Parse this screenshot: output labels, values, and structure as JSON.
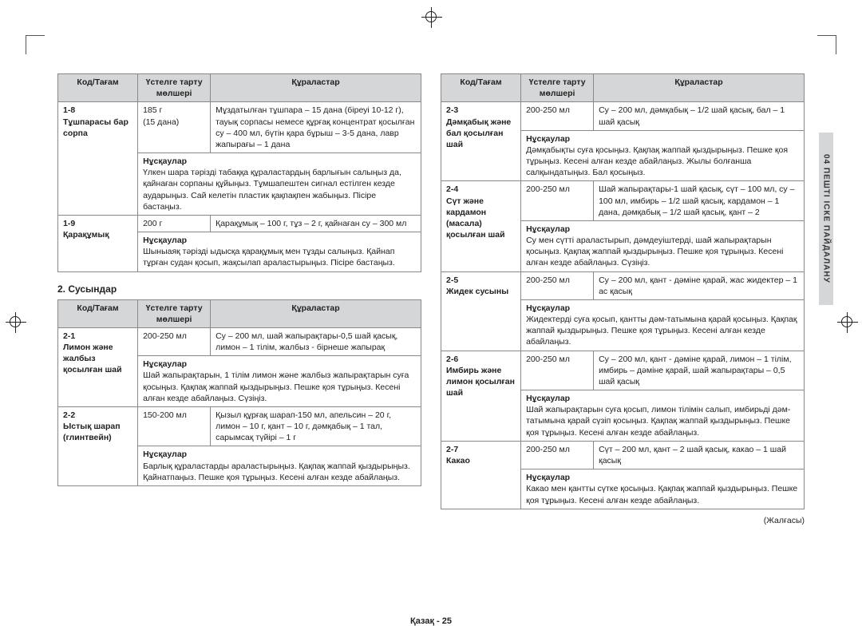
{
  "colors": {
    "header_bg": "#d5d6d8",
    "border": "#888888",
    "text": "#222222"
  },
  "headers": {
    "c1": "Код/Тағам",
    "c2": "Үстелге тарту мөлшері",
    "c3": "Құраластар"
  },
  "instr_label": "Нұсқаулар",
  "section2_title": "2. Сусындар",
  "continued": "(Жалғасы)",
  "page_num_label": "Қазақ - 25",
  "side_tab": "04  ПЕШТІ ІСКЕ ПАЙДАЛАНУ",
  "footer_l": "GE83KRQW-1_BWT_DE68-04283B-00_KK.indd   25",
  "footer_r": "2015-01-29   ⌘ 9:25:27",
  "left_t1": [
    {
      "code": "1-8\nТұшпарасы бар сорпа",
      "portion": "185 г\n(15 дана)",
      "ingr": "Мұздатылған тұшпара – 15 дана (біреуі 10-12 г), тауық сорпасы немесе құрғақ концентрат қосылған су – 400 мл, бүтін қара бұрыш – 3-5 дана, лавр жапырағы – 1 дана",
      "instr": "Үлкен шара тәрізді табаққа құраластардың барлығын салыңыз да, қайнаған сорпаны құйыңыз. Тұмшапештен сигнал естілген кезде аударыңыз. Сай келетін пластик қақпақпен жабыңыз. Пісіре бастаңыз."
    },
    {
      "code": "1-9\nҚарақұмық",
      "portion": "200 г",
      "ingr": "Қарақұмық – 100 г, тұз – 2 г, қайнаған су – 300 мл",
      "instr": "Шыныаяқ тәрізді ыдысқа қарақұмық мен тұзды салыңыз. Қайнап тұрған судан қосып, жақсылап араластырыңыз. Пісіре бастаңыз."
    }
  ],
  "left_t2": [
    {
      "code": "2-1\nЛимон және жалбыз қосылған шай",
      "portion": "200-250 мл",
      "ingr": "Су – 200 мл, шай жапырақтары-0,5 шай қасық, лимон – 1 тілім, жалбыз - бірнеше жапырақ",
      "instr": "Шай жапырақтарын, 1 тілім лимон және жалбыз жапырақтарын суға қосыңыз. Қақпақ жаппай қыздырыңыз. Пешке қоя тұрыңыз. Кесені алған кезде абайлаңыз. Сүзіңіз."
    },
    {
      "code": "2-2\nЫстық шарап (глинтвейн)",
      "portion": "150-200 мл",
      "ingr": "Қызыл құрғақ шарап-150 мл, апельсин – 20 г, лимон – 10 г, қант – 10 г, дәмқабық – 1 тал, сарымсақ түйірі – 1 г",
      "instr": "Барлық құраластарды араластырыңыз. Қақпақ жаппай қыздырыңыз. Қайнатпаңыз. Пешке қоя тұрыңыз. Кесені алған кезде абайлаңыз."
    }
  ],
  "right_t": [
    {
      "code": "2-3\nДәмқабық және бал қосылған шай",
      "portion": "200-250 мл",
      "ingr": "Су – 200 мл, дәмқабық – 1/2 шай қасық, бал – 1 шай қасық",
      "instr": "Дәмқабықты суға қосыңыз. Қақпақ жаппай қыздырыңыз. Пешке қоя тұрыңыз. Кесені алған кезде абайлаңыз. Жылы болғанша салқындатыңыз. Бал қосыңыз."
    },
    {
      "code": "2-4\nСүт және кардамон (масала) қосылған шай",
      "portion": "200-250 мл",
      "ingr": "Шай жапырақтары-1 шай қасық, сүт – 100 мл, су – 100 мл, имбирь – 1/2 шай қасық, кардамон – 1 дана, дәмқабық – 1/2 шай қасық, қант – 2",
      "instr": "Су мен сүтті араластырып, дәмдеуіштерді, шай жапырақтарын қосыңыз. Қақпақ жаппай қыздырыңыз. Пешке қоя тұрыңыз. Кесені алған кезде абайлаңыз. Сүзіңіз."
    },
    {
      "code": "2-5\nЖидек сусыны",
      "portion": "200-250 мл",
      "ingr": "Су – 200 мл, қант - дәміне қарай, жас жидектер – 1 ас қасық",
      "instr": "Жидектерді суға қосып, қантты дәм-татымына қарай қосыңыз. Қақпақ жаппай қыздырыңыз. Пешке қоя тұрыңыз. Кесені алған кезде абайлаңыз."
    },
    {
      "code": "2-6\nИмбирь және лимон қосылған шай",
      "portion": "200-250 мл",
      "ingr": "Су – 200 мл, қант - дәміне қарай, лимон – 1 тілім, имбирь – дәміне қарай, шай жапырақтары – 0,5 шай қасық",
      "instr": "Шай жапырақтарын суға қосып, лимон тілімін салып, имбирьді дәм-татымына қарай сүзіп қосыңыз. Қақпақ жаппай қыздырыңыз. Пешке қоя тұрыңыз. Кесені алған кезде абайлаңыз."
    },
    {
      "code": "2-7\nКакао",
      "portion": "200-250 мл",
      "ingr": "Сүт – 200 мл, қант – 2 шай қасық, какао – 1 шай қасық",
      "instr": "Какао мен қантты сүтке қосыңыз. Қақпақ жаппай қыздырыңыз. Пешке қоя тұрыңыз. Кесені алған кезде абайлаңыз."
    }
  ]
}
